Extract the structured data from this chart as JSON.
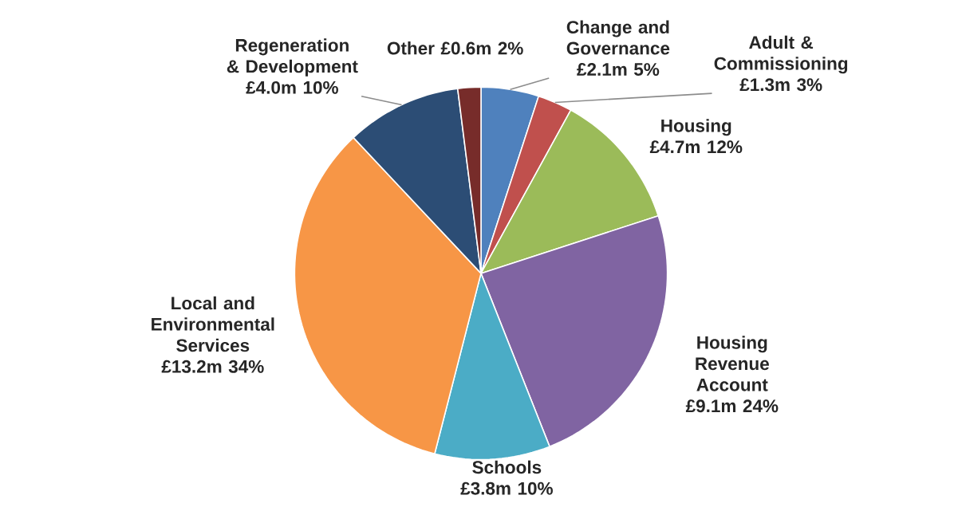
{
  "chart_data": {
    "type": "pie",
    "categories": [
      "Change and Governance",
      "Adult & Commissioning",
      "Housing",
      "Housing Revenue Account",
      "Schools",
      "Local and Environmental Services",
      "Regeneration & Development",
      "Other"
    ],
    "values": [
      5,
      3,
      12,
      24,
      10,
      34,
      10,
      2
    ],
    "colors": [
      "#4f81bd",
      "#c0504d",
      "#9bbb59",
      "#8064a2",
      "#4bacc6",
      "#f79646",
      "#2c4d75",
      "#772c2a"
    ],
    "value_labels": [
      "£2.1m 5%",
      "£1.3m 3%",
      "£4.7m 12%",
      "£9.1m 24%",
      "£3.8m 10%",
      "£13.2m 34%",
      "£4.0m 10%",
      "£0.6m 2%"
    ]
  }
}
